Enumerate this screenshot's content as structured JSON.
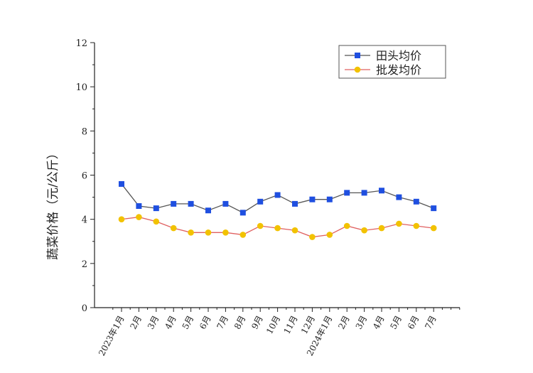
{
  "chart_data": {
    "type": "line",
    "ylabel": "蔬菜价格（元/公斤）",
    "xlabel": "",
    "ylim": [
      0,
      12
    ],
    "yticks": [
      0,
      2,
      4,
      6,
      8,
      10,
      12
    ],
    "categories": [
      "2023年1月",
      "2月",
      "3月",
      "4月",
      "5月",
      "6月",
      "7月",
      "8月",
      "9月",
      "10月",
      "11月",
      "12月",
      "2024年1月",
      "2月",
      "3月",
      "4月",
      "5月",
      "6月",
      "7月"
    ],
    "series": [
      {
        "name": "田头均价",
        "color": "#1f4fe0",
        "line_color": "#555555",
        "marker": "square",
        "values": [
          5.6,
          4.6,
          4.5,
          4.7,
          4.7,
          4.4,
          4.7,
          4.3,
          4.8,
          5.1,
          4.7,
          4.9,
          4.9,
          5.2,
          5.2,
          5.3,
          5.0,
          4.8,
          4.5
        ]
      },
      {
        "name": "批发均价",
        "color": "#f2c200",
        "line_color": "#e06060",
        "marker": "circle",
        "values": [
          4.0,
          4.1,
          3.9,
          3.6,
          3.4,
          3.4,
          3.4,
          3.3,
          3.7,
          3.6,
          3.5,
          3.2,
          3.3,
          3.7,
          3.5,
          3.6,
          3.8,
          3.7,
          3.6
        ]
      }
    ],
    "legend_position": "top-right",
    "grid": false
  }
}
